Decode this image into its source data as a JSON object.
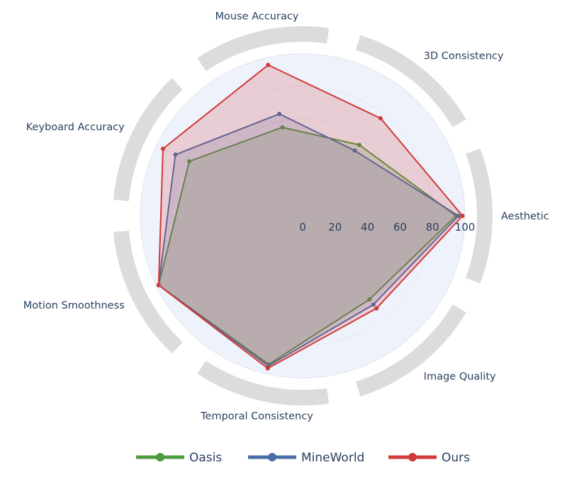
{
  "chart_data": {
    "type": "radar",
    "categories": [
      "Aesthetic",
      "3D Consistency",
      "Mouse Accuracy",
      "Keyboard Accuracy",
      "Motion Smoothness",
      "Temporal Consistency",
      "Image Quality"
    ],
    "radial_range": [
      0,
      100
    ],
    "radial_ticks": [
      "0",
      "20",
      "40",
      "60",
      "80",
      "100"
    ],
    "series": [
      {
        "name": "Oasis",
        "color": "#4f9a3e",
        "values": [
          94.5,
          56,
          56,
          77.5,
          98.5,
          94,
          66
        ]
      },
      {
        "name": "MineWorld",
        "color": "#4a6ea8",
        "values": [
          96,
          51.5,
          64.5,
          87,
          98.5,
          95,
          70
        ]
      },
      {
        "name": "Ours",
        "color": "#d13a3a",
        "values": [
          98.5,
          77,
          95.5,
          95.5,
          98.5,
          96.5,
          73
        ]
      }
    ],
    "legend_position": "bottom",
    "grid": true
  }
}
